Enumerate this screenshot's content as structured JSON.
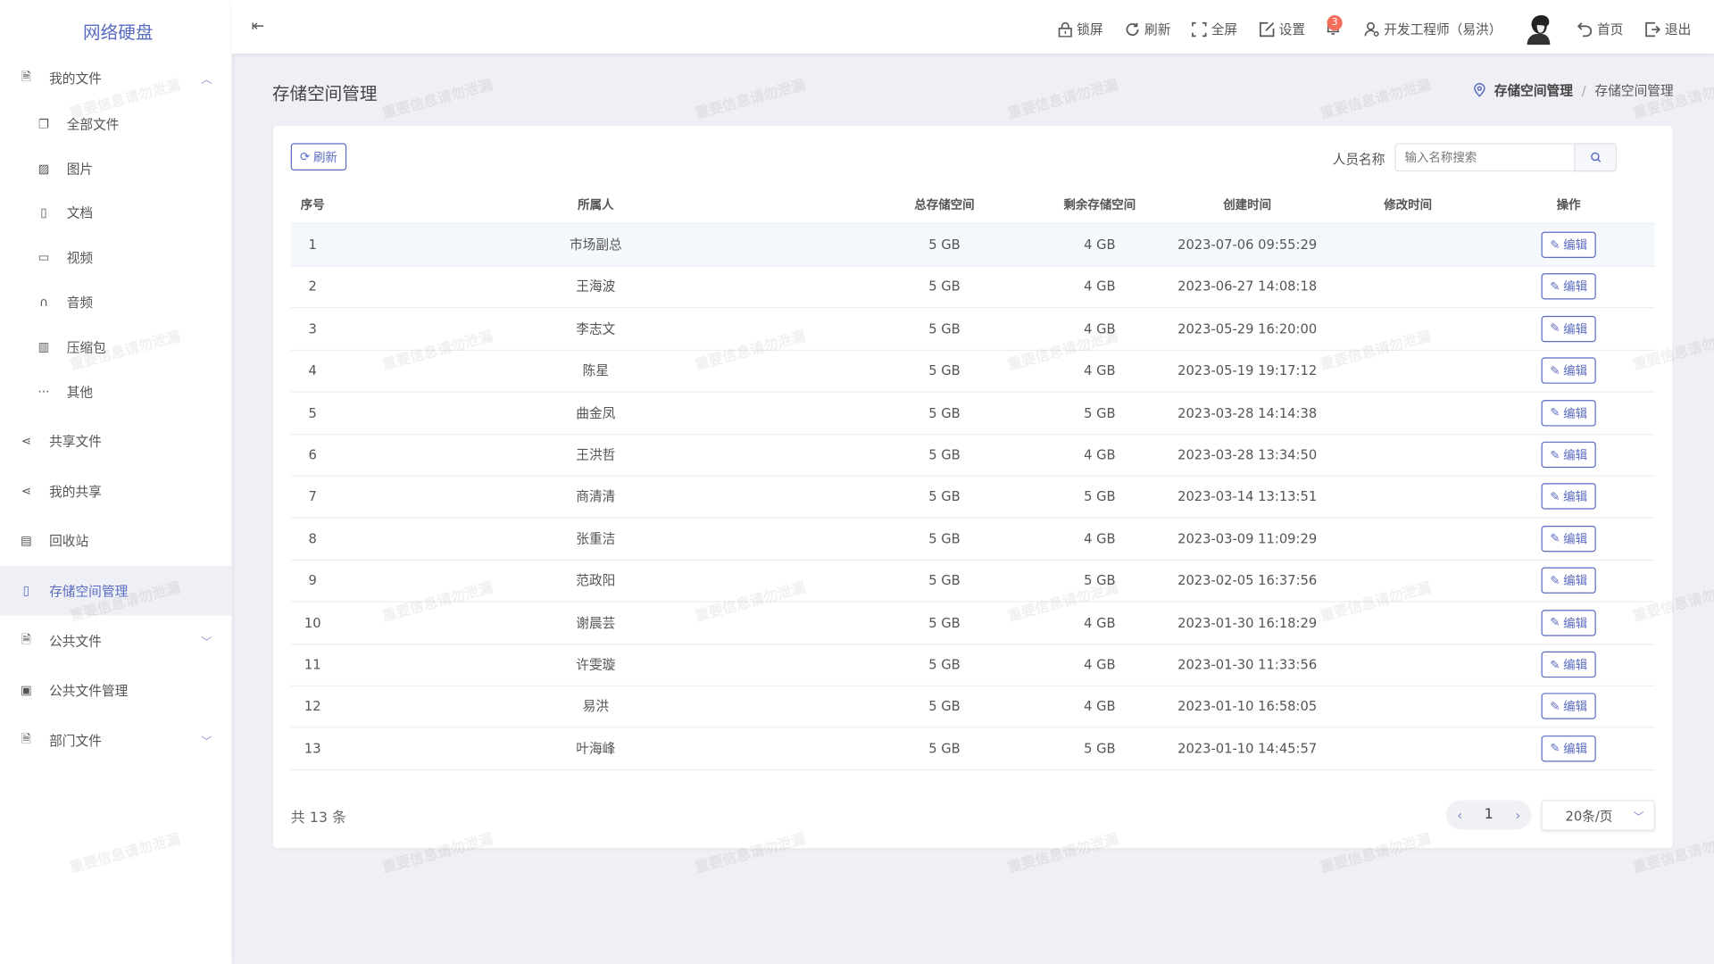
{
  "app": {
    "title": "网络硬盘",
    "accent": "#5a6bc0",
    "watermark": "重要信息请勿泄漏"
  },
  "sidebar": {
    "items": [
      {
        "label": "我的文件",
        "icon": "file-icon",
        "expanded": true,
        "children": [
          {
            "label": "全部文件",
            "icon": "copy-icon"
          },
          {
            "label": "图片",
            "icon": "image-icon"
          },
          {
            "label": "文档",
            "icon": "word-doc-icon"
          },
          {
            "label": "视频",
            "icon": "video-icon"
          },
          {
            "label": "音频",
            "icon": "headphones-icon"
          },
          {
            "label": "压缩包",
            "icon": "zip-icon"
          },
          {
            "label": "其他",
            "icon": "more-icon"
          }
        ]
      },
      {
        "label": "共享文件",
        "icon": "share-icon"
      },
      {
        "label": "我的共享",
        "icon": "share-icon"
      },
      {
        "label": "回收站",
        "icon": "trash-icon"
      },
      {
        "label": "存储空间管理",
        "icon": "sd-card-icon",
        "active": true
      },
      {
        "label": "公共文件",
        "icon": "file-icon",
        "expanded": false
      },
      {
        "label": "公共文件管理",
        "icon": "folder-icon"
      },
      {
        "label": "部门文件",
        "icon": "file-icon",
        "expanded": false
      }
    ]
  },
  "header": {
    "lock": "锁屏",
    "refresh": "刷新",
    "fullscreen": "全屏",
    "settings": "设置",
    "notifications": "3",
    "user": "开发工程师（易洪）",
    "home": "首页",
    "logout": "退出"
  },
  "page": {
    "title": "存储空间管理",
    "breadcrumb": [
      "存储空间管理",
      "存储空间管理"
    ]
  },
  "toolbar": {
    "refresh": "刷新",
    "search_label": "人员名称",
    "search_placeholder": "输入名称搜索",
    "search_value": ""
  },
  "table": {
    "columns": [
      "序号",
      "所属人",
      "总存储空间",
      "剩余存储空间",
      "创建时间",
      "修改时间",
      "操作"
    ],
    "action_label": "编辑",
    "rows": [
      [
        "1",
        "市场副总",
        "5 GB",
        "4 GB",
        "2023-07-06 09:55:29",
        ""
      ],
      [
        "2",
        "王海波",
        "5 GB",
        "4 GB",
        "2023-06-27 14:08:18",
        ""
      ],
      [
        "3",
        "李志文",
        "5 GB",
        "4 GB",
        "2023-05-29 16:20:00",
        ""
      ],
      [
        "4",
        "陈星",
        "5 GB",
        "4 GB",
        "2023-05-19 19:17:12",
        ""
      ],
      [
        "5",
        "曲金凤",
        "5 GB",
        "5 GB",
        "2023-03-28 14:14:38",
        ""
      ],
      [
        "6",
        "王洪哲",
        "5 GB",
        "4 GB",
        "2023-03-28 13:34:50",
        ""
      ],
      [
        "7",
        "商清清",
        "5 GB",
        "5 GB",
        "2023-03-14 13:13:51",
        ""
      ],
      [
        "8",
        "张重洁",
        "5 GB",
        "4 GB",
        "2023-03-09 11:09:29",
        ""
      ],
      [
        "9",
        "范政阳",
        "5 GB",
        "5 GB",
        "2023-02-05 16:37:56",
        ""
      ],
      [
        "10",
        "谢晨芸",
        "5 GB",
        "4 GB",
        "2023-01-30 16:18:29",
        ""
      ],
      [
        "11",
        "许雯璇",
        "5 GB",
        "4 GB",
        "2023-01-30 11:33:56",
        ""
      ],
      [
        "12",
        "易洪",
        "5 GB",
        "4 GB",
        "2023-01-10 16:58:05",
        ""
      ],
      [
        "13",
        "叶海峰",
        "5 GB",
        "5 GB",
        "2023-01-10 14:45:57",
        ""
      ]
    ]
  },
  "pagination": {
    "total": "共 13 条",
    "current": "1",
    "page_size": "20条/页"
  }
}
